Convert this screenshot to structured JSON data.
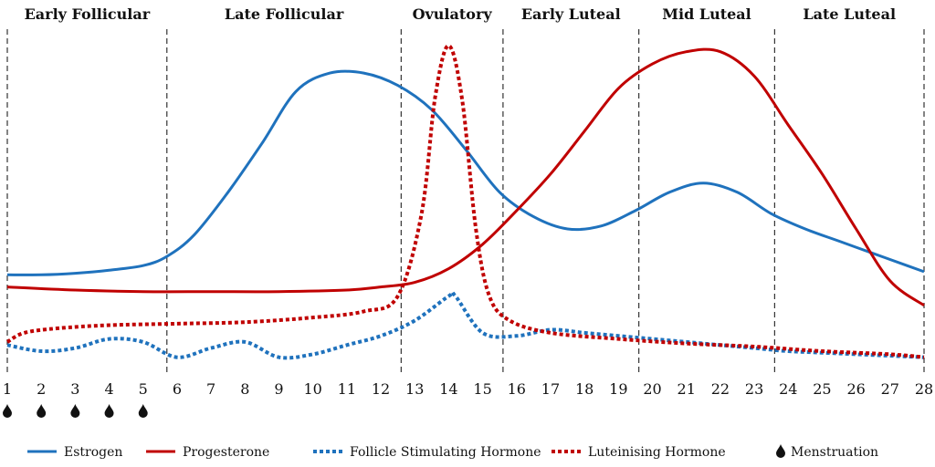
{
  "chart_data": {
    "type": "line",
    "xlim": [
      1,
      28
    ],
    "ylim": [
      0,
      100
    ],
    "x_ticks": [
      1,
      2,
      3,
      4,
      5,
      6,
      7,
      8,
      9,
      10,
      11,
      12,
      13,
      14,
      15,
      16,
      17,
      18,
      19,
      20,
      21,
      22,
      23,
      24,
      25,
      26,
      27,
      28
    ],
    "phases": [
      {
        "label": "Early Follicular",
        "start": 1,
        "end": 5.7
      },
      {
        "label": "Late Follicular",
        "start": 5.7,
        "end": 12.6
      },
      {
        "label": "Ovulatory",
        "start": 12.6,
        "end": 15.6
      },
      {
        "label": "Early Luteal",
        "start": 15.6,
        "end": 19.6
      },
      {
        "label": "Mid Luteal",
        "start": 19.6,
        "end": 23.6
      },
      {
        "label": "Late Luteal",
        "start": 23.6,
        "end": 28
      }
    ],
    "menstruation_days": [
      1,
      2,
      3,
      4,
      5
    ],
    "series": [
      {
        "name": "Estrogen",
        "color": "#1f72bd",
        "style": "solid",
        "x": [
          1,
          2,
          3,
          4,
          5,
          5.7,
          6.5,
          7.5,
          8.5,
          9.5,
          10.5,
          11.5,
          12.5,
          13.5,
          14.5,
          15.5,
          16.5,
          17.5,
          18.5,
          19.5,
          20.5,
          21.5,
          22.5,
          23.5,
          24.5,
          25.5,
          26.5,
          27.5,
          28
        ],
        "y": [
          25,
          25,
          25.5,
          26.5,
          28,
          31,
          38,
          52,
          68,
          85,
          91,
          91,
          87,
          79,
          66,
          52,
          44,
          40,
          41,
          46,
          52,
          55,
          52,
          45,
          40,
          36,
          32,
          28,
          26
        ]
      },
      {
        "name": "Progesterone",
        "color": "#c00000",
        "style": "solid",
        "x": [
          1,
          3,
          5,
          7,
          9,
          11,
          12,
          13,
          14,
          15,
          16,
          17,
          18,
          19,
          20,
          21,
          22,
          23,
          24,
          25,
          26,
          27,
          28
        ],
        "y": [
          21,
          20,
          19.5,
          19.5,
          19.5,
          20,
          21,
          22.5,
          27,
          35,
          46,
          58,
          72,
          86,
          94,
          98,
          98,
          90,
          74,
          58,
          40,
          23,
          15
        ]
      },
      {
        "name": "Follicle Stimulating Hormone",
        "color": "#1f72bd",
        "style": "dotted",
        "x": [
          1,
          2,
          3,
          4,
          5,
          6,
          7,
          8,
          9,
          10,
          11,
          12,
          13,
          14,
          14.2,
          15,
          16,
          17,
          18,
          19,
          20,
          21,
          22,
          23,
          24,
          25,
          26,
          27,
          28
        ],
        "y": [
          2,
          0,
          1,
          4,
          3,
          -2,
          1,
          3,
          -2,
          -1,
          2,
          5,
          10,
          18,
          18,
          6,
          5,
          7,
          6,
          5,
          4,
          3,
          2,
          1,
          0,
          -0.5,
          -1,
          -1.5,
          -2
        ]
      },
      {
        "name": "Luteinising Hormone",
        "color": "#c00000",
        "style": "dotted",
        "x": [
          1,
          1.5,
          2.5,
          4,
          6,
          8,
          10,
          11.5,
          12.5,
          13.2,
          13.6,
          14,
          14.4,
          14.8,
          15.2,
          15.8,
          17,
          19,
          21,
          23,
          25,
          27,
          28
        ],
        "y": [
          3,
          6,
          7.5,
          8.5,
          9,
          9.5,
          11,
          13,
          18,
          45,
          83,
          100,
          82,
          40,
          18,
          10,
          6,
          4,
          2.5,
          1.5,
          0,
          -1,
          -2
        ]
      }
    ],
    "legend": [
      {
        "label": "Estrogen",
        "kind": "solid",
        "color": "#1f72bd"
      },
      {
        "label": "Progesterone",
        "kind": "solid",
        "color": "#c00000"
      },
      {
        "label": "Follicle Stimulating Hormone",
        "kind": "dotted",
        "color": "#1f72bd"
      },
      {
        "label": "Luteinising Hormone",
        "kind": "dotted",
        "color": "#c00000"
      },
      {
        "label": "Menstruation",
        "kind": "drop",
        "color": "#111111"
      }
    ],
    "legend_position": "bottom"
  }
}
